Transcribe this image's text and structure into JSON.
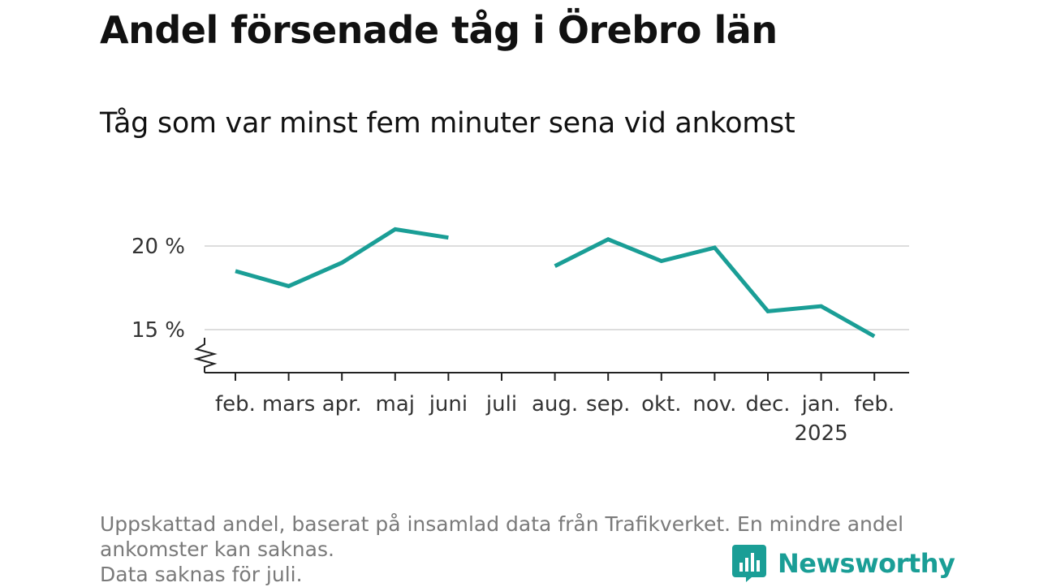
{
  "title": "Andel försenade tåg i Örebro län",
  "subtitle": "Tåg som var minst fem minuter sena vid ankomst",
  "footnote": [
    "Uppskattad andel, baserat på insamlad data från Trafikverket. En mindre andel",
    "ankomster kan saknas.",
    "Data saknas för juli."
  ],
  "brand": "Newsworthy",
  "colors": {
    "line": "#1a9e96",
    "brand": "#1a9e96",
    "grid": "#dddddd",
    "axis": "#222222"
  },
  "chart_data": {
    "type": "line",
    "categories": [
      "feb.",
      "mars",
      "apr.",
      "maj",
      "juni",
      "juli",
      "aug.",
      "sep.",
      "okt.",
      "nov.",
      "dec.",
      "jan.",
      "feb."
    ],
    "year_labels": [
      "",
      "",
      "",
      "",
      "",
      "",
      "",
      "",
      "",
      "",
      "",
      "2025",
      ""
    ],
    "series": [
      {
        "values": [
          18.5,
          17.6,
          19.0,
          21.0,
          20.5,
          null,
          18.8,
          20.4,
          19.1,
          19.9,
          16.1,
          16.4,
          14.6
        ]
      }
    ],
    "yticks": [
      15,
      20
    ],
    "ytick_labels": [
      "15 %",
      "20 %"
    ],
    "ylim": [
      12.4,
      22.6
    ],
    "broken_axis": true,
    "grid": true
  }
}
